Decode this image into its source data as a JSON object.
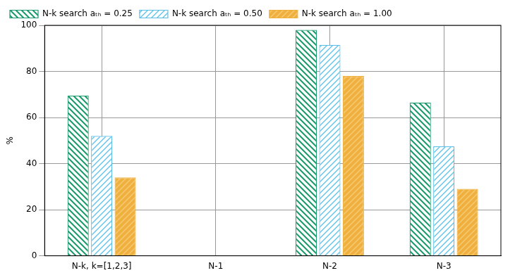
{
  "chart_data": {
    "type": "bar",
    "y_label": "%",
    "categories": [
      "N-k, k=[1,2,3]",
      "N-1",
      "N-2",
      "N-3"
    ],
    "series": [
      {
        "name": "N-k search aₜₕ = 0.25",
        "color": "#1a9a6c",
        "values": [
          69.5,
          0,
          98,
          66.5
        ]
      },
      {
        "name": "N-k search aₜₕ = 0.50",
        "color": "#5bbfe8",
        "values": [
          52,
          0,
          91.5,
          47.5
        ]
      },
      {
        "name": "N-k search aₜₕ = 1.00",
        "color": "#f0b03c",
        "values": [
          34,
          0,
          78,
          29
        ]
      }
    ],
    "ylim": [
      0,
      100
    ],
    "yticks": [
      0,
      20,
      40,
      60,
      80,
      100
    ],
    "grid": true,
    "legend": "top-left"
  }
}
